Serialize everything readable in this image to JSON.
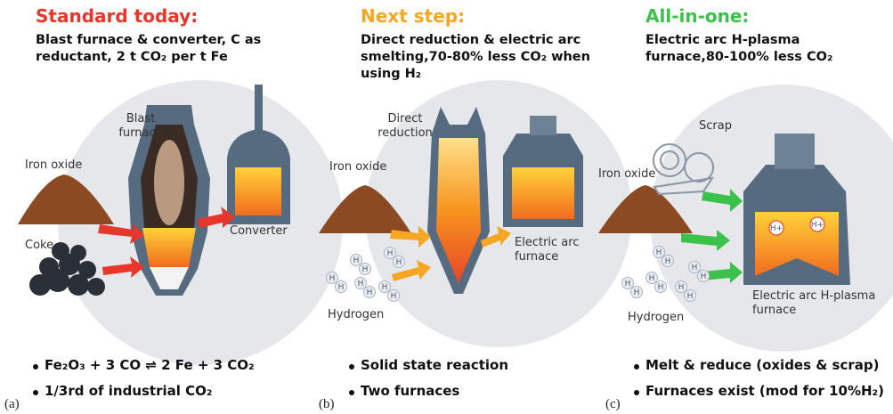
{
  "panels": [
    {
      "label": "(a)",
      "heading": "Standard today:",
      "description": "Blast furnace & converter, C as reductant, 2 t CO₂ per t Fe",
      "callouts": [
        "Blast furnace",
        "Iron oxide",
        "Coke",
        "Converter"
      ],
      "bullets": [
        "Fe₂O₃ + 3 CO ⇌ 2 Fe + 3 CO₂",
        "1/3rd of industrial CO₂"
      ]
    },
    {
      "label": "(b)",
      "heading": "Next step:",
      "description": "Direct reduction & electric arc smelting,70-80% less CO₂ when using H₂",
      "callouts": [
        "Direct reduction",
        "Iron oxide",
        "Electric arc furnace",
        "Hydrogen"
      ],
      "bullets": [
        "Solid state reaction",
        "Two furnaces"
      ]
    },
    {
      "label": "(c)",
      "heading": "All-in-one:",
      "description": "Electric arc H-plasma furnace,80-100% less CO₂",
      "callouts": [
        "Scrap",
        "Iron oxide",
        "Electric arc H-plasma furnace",
        "Hydrogen"
      ],
      "bullets": [
        "Melt & reduce (oxides & scrap)",
        "Furnaces exist (mod for 10%H₂)"
      ]
    }
  ],
  "atom_symbol": "H",
  "ion_symbol": "H+"
}
